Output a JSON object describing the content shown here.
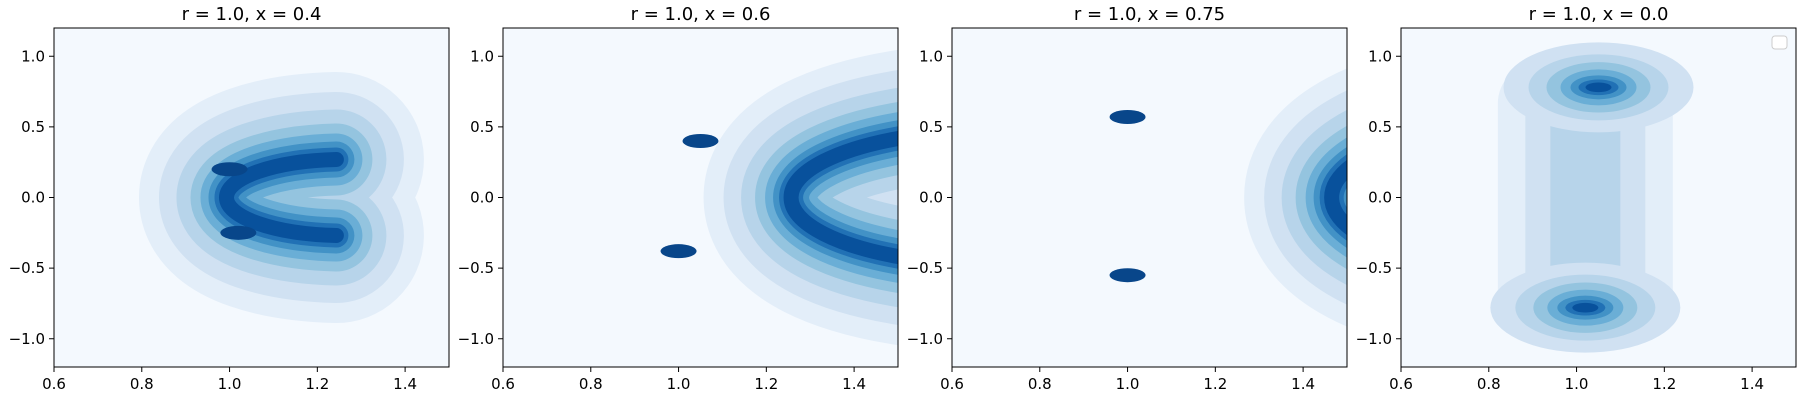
{
  "figure": {
    "panel_count": 4
  },
  "chart_data": [
    {
      "type": "contour",
      "title": "r = 1.0, x = 0.4",
      "xlim": [
        0.6,
        1.5
      ],
      "ylim": [
        -1.2,
        1.2
      ],
      "xticks": [
        0.6,
        0.8,
        1.0,
        1.2,
        1.4
      ],
      "xtick_labels": [
        "0.6",
        "0.8",
        "1.0",
        "1.2",
        "1.4"
      ],
      "yticks": [
        -1.0,
        -0.5,
        0.0,
        0.5,
        1.0
      ],
      "ytick_labels": [
        "−1.0",
        "−0.5",
        "0.0",
        "0.5",
        "1.0"
      ],
      "colormap": "Blues",
      "shape": "crescent",
      "peaks": [
        {
          "x": 1.0,
          "y": 0.2
        },
        {
          "x": 1.02,
          "y": -0.25
        }
      ],
      "arc_center": [
        1.22,
        0.0
      ],
      "arc_radius": 0.27,
      "arc_sweep_deg": 95,
      "legend": false
    },
    {
      "type": "contour",
      "title": "r = 1.0, x = 0.6",
      "xlim": [
        0.6,
        1.5
      ],
      "ylim": [
        -1.2,
        1.2
      ],
      "xticks": [
        0.6,
        0.8,
        1.0,
        1.2,
        1.4
      ],
      "xtick_labels": [
        "0.6",
        "0.8",
        "1.0",
        "1.2",
        "1.4"
      ],
      "yticks": [
        -1.0,
        -0.5,
        0.0,
        0.5,
        1.0
      ],
      "ytick_labels": [
        "−1.0",
        "−0.5",
        "0.0",
        "0.5",
        "1.0"
      ],
      "colormap": "Blues",
      "shape": "crescent",
      "peaks": [
        {
          "x": 1.05,
          "y": 0.4
        },
        {
          "x": 1.0,
          "y": -0.38
        }
      ],
      "arc_center": [
        1.33,
        0.0
      ],
      "arc_radius": 0.48,
      "arc_sweep_deg": 115,
      "legend": false
    },
    {
      "type": "contour",
      "title": "r = 1.0, x = 0.75",
      "xlim": [
        0.6,
        1.5
      ],
      "ylim": [
        -1.2,
        1.2
      ],
      "xticks": [
        0.6,
        0.8,
        1.0,
        1.2,
        1.4
      ],
      "xtick_labels": [
        "0.6",
        "0.8",
        "1.0",
        "1.2",
        "1.4"
      ],
      "yticks": [
        -1.0,
        -0.5,
        0.0,
        0.5,
        1.0
      ],
      "ytick_labels": [
        "−1.0",
        "−0.5",
        "0.0",
        "0.5",
        "1.0"
      ],
      "colormap": "Blues",
      "shape": "crescent",
      "peaks": [
        {
          "x": 1.0,
          "y": 0.57
        },
        {
          "x": 1.0,
          "y": -0.55
        }
      ],
      "arc_center": [
        1.3,
        0.0
      ],
      "arc_radius": 0.58,
      "arc_sweep_deg": 130,
      "legend": false
    },
    {
      "type": "contour",
      "title": "r = 1.0, x = 0.0",
      "xlim": [
        0.6,
        1.5
      ],
      "ylim": [
        -1.2,
        1.2
      ],
      "xticks": [
        0.6,
        0.8,
        1.0,
        1.2,
        1.4
      ],
      "xtick_labels": [
        "0.6",
        "0.8",
        "1.0",
        "1.2",
        "1.4"
      ],
      "yticks": [
        -1.0,
        -0.5,
        0.0,
        0.5,
        1.0
      ],
      "ytick_labels": [
        "−1.0",
        "−0.5",
        "0.0",
        "0.5",
        "1.0"
      ],
      "colormap": "Blues",
      "shape": "two-lobes",
      "peaks": [
        {
          "x": 1.05,
          "y": 0.78
        },
        {
          "x": 1.02,
          "y": -0.78
        }
      ],
      "legend": true
    }
  ]
}
